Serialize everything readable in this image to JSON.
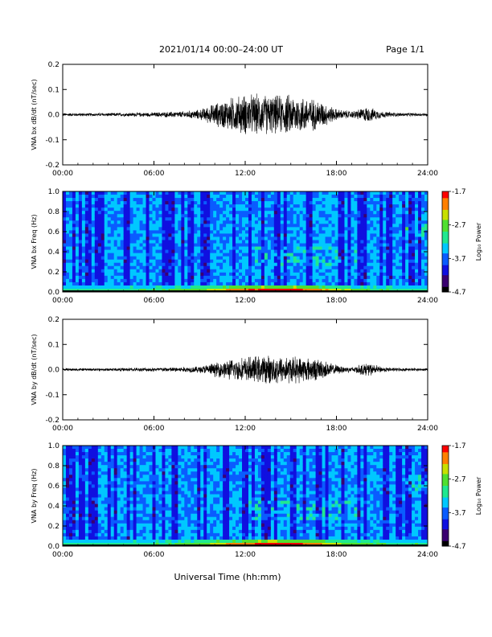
{
  "header": {
    "title": "2021/01/14  00:00–24:00 UT",
    "page": "Page 1/1"
  },
  "footer": {
    "xlabel": "Universal Time (hh:mm)"
  },
  "colors": {
    "trace": "#000000",
    "colormap": [
      "#000000",
      "#3a0070",
      "#1010e0",
      "#0a5cff",
      "#00c8ff",
      "#20e890",
      "#50e030",
      "#c8e000",
      "#ff8000",
      "#ff0000"
    ]
  },
  "chart_data": [
    {
      "type": "line",
      "ylabel": "VNA bx dB/dt (nT/sec)",
      "xticks": [
        "00:00",
        "06:00",
        "12:00",
        "18:00",
        "24:00"
      ],
      "yticks": [
        "0.2",
        "0.1",
        "0.0",
        "-0.1",
        "-0.2"
      ],
      "xlim": [
        0,
        24
      ],
      "ylim": [
        -0.2,
        0.2
      ],
      "series": [
        {
          "x": [
            0,
            2,
            4,
            6,
            8,
            9,
            10,
            11,
            12,
            13,
            14,
            15,
            16,
            17,
            18,
            19,
            20,
            21,
            22,
            24
          ],
          "amplitude": [
            0.007,
            0.007,
            0.008,
            0.01,
            0.015,
            0.022,
            0.05,
            0.075,
            0.09,
            0.09,
            0.085,
            0.09,
            0.08,
            0.06,
            0.025,
            0.015,
            0.035,
            0.015,
            0.008,
            0.007
          ]
        }
      ]
    },
    {
      "type": "heatmap",
      "ylabel": "VNA bx Freq (Hz)",
      "xticks": [
        "00:00",
        "06:00",
        "12:00",
        "18:00",
        "24:00"
      ],
      "yticks": [
        "1.0",
        "0.8",
        "0.6",
        "0.4",
        "0.2",
        "0.0"
      ],
      "xlim": [
        0,
        24
      ],
      "ylim": [
        0.0,
        1.0
      ],
      "colorbar": {
        "label": "Log₁₀ Power",
        "ticks": [
          "-1.7",
          "-2.7",
          "-3.7",
          "-4.7"
        ],
        "range": [
          -4.7,
          -1.7
        ]
      }
    },
    {
      "type": "line",
      "ylabel": "VNA by dB/dt (nT/sec)",
      "xticks": [
        "00:00",
        "06:00",
        "12:00",
        "18:00",
        "24:00"
      ],
      "yticks": [
        "0.2",
        "0.1",
        "0.0",
        "-0.1",
        "-0.2"
      ],
      "xlim": [
        0,
        24
      ],
      "ylim": [
        -0.2,
        0.2
      ],
      "series": [
        {
          "x": [
            0,
            2,
            4,
            6,
            8,
            9,
            10,
            11,
            12,
            13,
            14,
            15,
            16,
            17,
            18,
            19,
            20,
            21,
            22,
            24
          ],
          "amplitude": [
            0.006,
            0.006,
            0.007,
            0.009,
            0.012,
            0.015,
            0.03,
            0.045,
            0.055,
            0.06,
            0.065,
            0.06,
            0.055,
            0.045,
            0.02,
            0.012,
            0.03,
            0.012,
            0.007,
            0.006
          ]
        }
      ]
    },
    {
      "type": "heatmap",
      "ylabel": "VNA by Freq (Hz)",
      "xticks": [
        "00:00",
        "06:00",
        "12:00",
        "18:00",
        "24:00"
      ],
      "yticks": [
        "1.0",
        "0.8",
        "0.6",
        "0.4",
        "0.2",
        "0.0"
      ],
      "xlim": [
        0,
        24
      ],
      "ylim": [
        0.0,
        1.0
      ],
      "colorbar": {
        "label": "Log₁₀ Power",
        "ticks": [
          "-1.7",
          "-2.7",
          "-3.7",
          "-4.7"
        ],
        "range": [
          -4.7,
          -1.7
        ]
      }
    }
  ]
}
